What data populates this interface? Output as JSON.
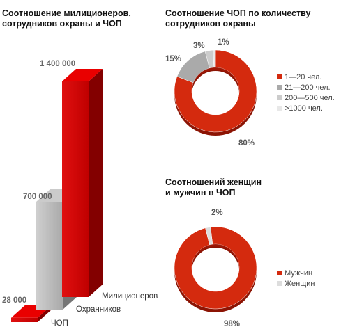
{
  "bar_chart": {
    "title_line1": "Соотношение милиционеров,",
    "title_line2": "сотрудников охраны и ЧОП"
  },
  "donut1": {
    "title_line1": "Соотношение ЧОП по количеству",
    "title_line2": "сотрудников охраны"
  },
  "donut2": {
    "title_line1": "Соотношений женщин",
    "title_line2": "и мужчин в ЧОП"
  },
  "colors": {
    "red": "#d42a0e",
    "gray": "#aaaaaa",
    "light_gray": "#cccccc",
    "lightest_gray": "#e8e8e8"
  },
  "chart_data": [
    {
      "type": "bar",
      "categories": [
        "ЧОП",
        "Охранников",
        "Милиционеров"
      ],
      "values": [
        28000,
        700000,
        1400000
      ],
      "value_labels": [
        "28 000",
        "700 000",
        "1 400 000"
      ],
      "colors": [
        "#d40000",
        "#bcbcbc",
        "#d40000"
      ]
    },
    {
      "type": "pie",
      "labels": [
        "1—20 чел.",
        "21—200 чел.",
        "200—500 чел.",
        ">1000 чел."
      ],
      "values": [
        80,
        15,
        3,
        1
      ],
      "value_labels": [
        "80%",
        "15%",
        "3%",
        "1%"
      ],
      "colors": [
        "#d42a0e",
        "#aaaaaa",
        "#cccccc",
        "#e8e8e8"
      ]
    },
    {
      "type": "pie",
      "labels": [
        "Мужчин",
        "Женщин"
      ],
      "values": [
        98,
        2
      ],
      "value_labels": [
        "98%",
        "2%"
      ],
      "colors": [
        "#d42a0e",
        "#dddddd"
      ]
    }
  ]
}
